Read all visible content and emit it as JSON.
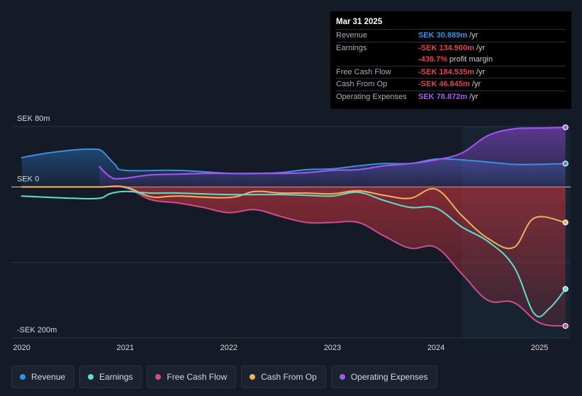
{
  "tooltip": {
    "date": "Mar 31 2025",
    "rows": [
      {
        "label": "Revenue",
        "value": "SEK 30.889m",
        "unit": "/yr",
        "color": "#3b8fe0"
      },
      {
        "label": "Earnings",
        "value": "-SEK 134.900m",
        "unit": "/yr",
        "color": "#e0434e"
      },
      {
        "label": "",
        "value": "-436.7%",
        "unit": "profit margin",
        "color": "#e0434e"
      },
      {
        "label": "Free Cash Flow",
        "value": "-SEK 184.535m",
        "unit": "/yr",
        "color": "#e0434e"
      },
      {
        "label": "Cash From Op",
        "value": "-SEK 46.845m",
        "unit": "/yr",
        "color": "#e0434e"
      },
      {
        "label": "Operating Expenses",
        "value": "SEK 78.872m",
        "unit": "/yr",
        "color": "#a855f7"
      }
    ]
  },
  "legend": [
    {
      "label": "Revenue",
      "color": "#3b8fe0"
    },
    {
      "label": "Earnings",
      "color": "#5ee0d0"
    },
    {
      "label": "Free Cash Flow",
      "color": "#d14b8f"
    },
    {
      "label": "Cash From Op",
      "color": "#f0b060"
    },
    {
      "label": "Operating Expenses",
      "color": "#a855f7"
    }
  ],
  "chart_data": {
    "type": "line",
    "unit": "SEK m",
    "y_tick_labels": [
      {
        "value": 80,
        "label": "SEK 80m"
      },
      {
        "value": 0,
        "label": "SEK 0"
      },
      {
        "value": -200,
        "label": "-SEK 200m"
      }
    ],
    "ylim": [
      -200,
      80
    ],
    "xlim": [
      2019.9,
      2025.3
    ],
    "x_tick_labels": [
      "2020",
      "2021",
      "2022",
      "2023",
      "2024",
      "2025"
    ],
    "x_tick_values": [
      2020,
      2021,
      2022,
      2023,
      2024,
      2025
    ],
    "highlight_start": 2024.25,
    "series": [
      {
        "name": "Revenue",
        "color": "#3b8fe0",
        "area": true,
        "points": [
          [
            2020.0,
            39
          ],
          [
            2020.25,
            45
          ],
          [
            2020.5,
            49
          ],
          [
            2020.7,
            50
          ],
          [
            2020.78,
            47
          ],
          [
            2020.9,
            30
          ],
          [
            2021.0,
            22
          ],
          [
            2021.5,
            22
          ],
          [
            2022.0,
            18
          ],
          [
            2022.25,
            18
          ],
          [
            2022.5,
            19
          ],
          [
            2022.75,
            23
          ],
          [
            2023.0,
            24
          ],
          [
            2023.25,
            28
          ],
          [
            2023.5,
            31
          ],
          [
            2023.75,
            31
          ],
          [
            2024.0,
            37
          ],
          [
            2024.25,
            36
          ],
          [
            2024.5,
            33
          ],
          [
            2024.75,
            30
          ],
          [
            2025.0,
            30
          ],
          [
            2025.25,
            31
          ]
        ]
      },
      {
        "name": "Operating Expenses",
        "color": "#a855f7",
        "area": true,
        "points": [
          [
            2020.75,
            27
          ],
          [
            2020.85,
            14
          ],
          [
            2020.95,
            11
          ],
          [
            2021.25,
            16
          ],
          [
            2021.5,
            17
          ],
          [
            2021.75,
            18
          ],
          [
            2022.0,
            18
          ],
          [
            2022.5,
            18
          ],
          [
            2022.75,
            19
          ],
          [
            2023.0,
            22
          ],
          [
            2023.25,
            23
          ],
          [
            2023.5,
            28
          ],
          [
            2023.75,
            31
          ],
          [
            2024.0,
            36
          ],
          [
            2024.25,
            45
          ],
          [
            2024.5,
            68
          ],
          [
            2024.75,
            77
          ],
          [
            2025.0,
            78
          ],
          [
            2025.25,
            79
          ]
        ]
      },
      {
        "name": "Earnings",
        "color": "#5ee0d0",
        "area": false,
        "points": [
          [
            2020.0,
            -12
          ],
          [
            2020.5,
            -15
          ],
          [
            2020.75,
            -15
          ],
          [
            2020.85,
            -9
          ],
          [
            2021.0,
            -6
          ],
          [
            2021.25,
            -8
          ],
          [
            2021.5,
            -8
          ],
          [
            2022.0,
            -10
          ],
          [
            2022.5,
            -10
          ],
          [
            2022.75,
            -11
          ],
          [
            2023.0,
            -12
          ],
          [
            2023.25,
            -7
          ],
          [
            2023.5,
            -18
          ],
          [
            2023.75,
            -27
          ],
          [
            2024.0,
            -28
          ],
          [
            2024.25,
            -53
          ],
          [
            2024.5,
            -72
          ],
          [
            2024.75,
            -105
          ],
          [
            2024.95,
            -168
          ],
          [
            2025.1,
            -160
          ],
          [
            2025.25,
            -135
          ]
        ]
      },
      {
        "name": "Free Cash Flow",
        "color": "#d14b8f",
        "area": true,
        "points": [
          [
            2020.0,
            0
          ],
          [
            2020.5,
            0
          ],
          [
            2020.75,
            0
          ],
          [
            2021.0,
            -1
          ],
          [
            2021.25,
            -17
          ],
          [
            2021.5,
            -21
          ],
          [
            2021.75,
            -27
          ],
          [
            2022.0,
            -34
          ],
          [
            2022.25,
            -30
          ],
          [
            2022.5,
            -39
          ],
          [
            2022.75,
            -47
          ],
          [
            2023.0,
            -47
          ],
          [
            2023.25,
            -47
          ],
          [
            2023.5,
            -65
          ],
          [
            2023.75,
            -81
          ],
          [
            2024.0,
            -80
          ],
          [
            2024.25,
            -115
          ],
          [
            2024.5,
            -150
          ],
          [
            2024.75,
            -153
          ],
          [
            2025.0,
            -180
          ],
          [
            2025.25,
            -184
          ]
        ]
      },
      {
        "name": "Cash From Op",
        "color": "#f0b060",
        "area": false,
        "points": [
          [
            2020.0,
            0
          ],
          [
            2020.5,
            0
          ],
          [
            2020.75,
            0
          ],
          [
            2021.0,
            0
          ],
          [
            2021.25,
            -13
          ],
          [
            2021.5,
            -12
          ],
          [
            2022.0,
            -14
          ],
          [
            2022.25,
            -6
          ],
          [
            2022.5,
            -8
          ],
          [
            2022.75,
            -8
          ],
          [
            2023.0,
            -9
          ],
          [
            2023.25,
            -5
          ],
          [
            2023.5,
            -11
          ],
          [
            2023.75,
            -15
          ],
          [
            2024.0,
            -3
          ],
          [
            2024.25,
            -38
          ],
          [
            2024.5,
            -68
          ],
          [
            2024.75,
            -80
          ],
          [
            2024.95,
            -41
          ],
          [
            2025.25,
            -47
          ]
        ]
      }
    ]
  }
}
